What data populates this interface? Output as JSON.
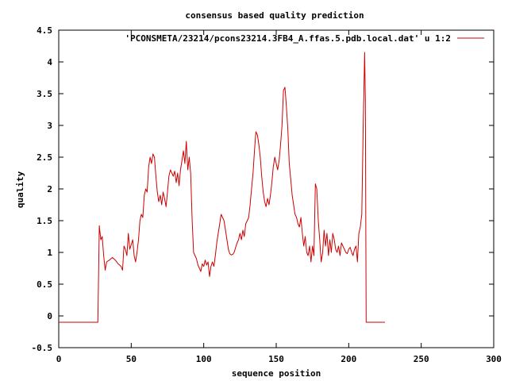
{
  "chart_data": {
    "type": "line",
    "title": "consensus based quality prediction",
    "xlabel": "sequence position",
    "ylabel": "quality",
    "xlim": [
      0,
      300
    ],
    "ylim": [
      -0.5,
      4.5
    ],
    "x_ticks": [
      "0",
      "50",
      "100",
      "150",
      "200",
      "250",
      "300"
    ],
    "y_ticks": [
      "-0.5",
      "0",
      "0.5",
      "1",
      "1.5",
      "2",
      "2.5",
      "3",
      "3.5",
      "4",
      "4.5"
    ],
    "grid": false,
    "legend_position": "top-right",
    "series": [
      {
        "name": "'PCONSMETA/23214/pcons23214.3FB4_A.ffas.5.pdb.local.dat' u 1:2",
        "color": "#cc0000",
        "points": [
          [
            0,
            -0.1
          ],
          [
            10,
            -0.1
          ],
          [
            20,
            -0.1
          ],
          [
            26,
            -0.1
          ],
          [
            27,
            -0.1
          ],
          [
            28,
            1.42
          ],
          [
            29,
            1.2
          ],
          [
            30,
            1.25
          ],
          [
            31,
            0.95
          ],
          [
            32,
            0.72
          ],
          [
            33,
            0.85
          ],
          [
            35,
            0.88
          ],
          [
            37,
            0.92
          ],
          [
            39,
            0.88
          ],
          [
            41,
            0.82
          ],
          [
            43,
            0.78
          ],
          [
            44,
            0.72
          ],
          [
            45,
            1.1
          ],
          [
            46,
            1.05
          ],
          [
            47,
            0.95
          ],
          [
            48,
            1.3
          ],
          [
            49,
            1.05
          ],
          [
            50,
            1.12
          ],
          [
            51,
            1.2
          ],
          [
            52,
            0.95
          ],
          [
            53,
            0.85
          ],
          [
            54,
            1.0
          ],
          [
            55,
            1.2
          ],
          [
            56,
            1.5
          ],
          [
            57,
            1.6
          ],
          [
            58,
            1.55
          ],
          [
            59,
            1.9
          ],
          [
            60,
            2.0
          ],
          [
            61,
            1.95
          ],
          [
            62,
            2.35
          ],
          [
            63,
            2.5
          ],
          [
            64,
            2.4
          ],
          [
            65,
            2.55
          ],
          [
            66,
            2.5
          ],
          [
            67,
            2.2
          ],
          [
            68,
            1.95
          ],
          [
            69,
            1.8
          ],
          [
            70,
            1.9
          ],
          [
            71,
            1.75
          ],
          [
            72,
            1.95
          ],
          [
            73,
            1.85
          ],
          [
            74,
            1.72
          ],
          [
            75,
            1.95
          ],
          [
            76,
            2.2
          ],
          [
            77,
            2.3
          ],
          [
            78,
            2.25
          ],
          [
            79,
            2.2
          ],
          [
            80,
            2.28
          ],
          [
            81,
            2.1
          ],
          [
            82,
            2.25
          ],
          [
            83,
            2.05
          ],
          [
            84,
            2.3
          ],
          [
            85,
            2.45
          ],
          [
            86,
            2.6
          ],
          [
            87,
            2.4
          ],
          [
            88,
            2.75
          ],
          [
            89,
            2.3
          ],
          [
            90,
            2.5
          ],
          [
            91,
            2.25
          ],
          [
            92,
            1.5
          ],
          [
            93,
            1.0
          ],
          [
            94,
            0.95
          ],
          [
            95,
            0.9
          ],
          [
            96,
            0.8
          ],
          [
            97,
            0.75
          ],
          [
            98,
            0.7
          ],
          [
            99,
            0.82
          ],
          [
            100,
            0.78
          ],
          [
            101,
            0.88
          ],
          [
            102,
            0.8
          ],
          [
            103,
            0.85
          ],
          [
            104,
            0.62
          ],
          [
            105,
            0.78
          ],
          [
            106,
            0.85
          ],
          [
            107,
            0.78
          ],
          [
            108,
            0.95
          ],
          [
            109,
            1.15
          ],
          [
            110,
            1.3
          ],
          [
            111,
            1.45
          ],
          [
            112,
            1.6
          ],
          [
            113,
            1.55
          ],
          [
            114,
            1.5
          ],
          [
            115,
            1.35
          ],
          [
            116,
            1.2
          ],
          [
            117,
            1.05
          ],
          [
            118,
            0.98
          ],
          [
            119,
            0.96
          ],
          [
            120,
            0.97
          ],
          [
            121,
            1.0
          ],
          [
            122,
            1.08
          ],
          [
            123,
            1.15
          ],
          [
            124,
            1.2
          ],
          [
            125,
            1.3
          ],
          [
            126,
            1.2
          ],
          [
            127,
            1.35
          ],
          [
            128,
            1.25
          ],
          [
            129,
            1.45
          ],
          [
            130,
            1.5
          ],
          [
            131,
            1.55
          ],
          [
            132,
            1.75
          ],
          [
            133,
            2.0
          ],
          [
            134,
            2.25
          ],
          [
            135,
            2.6
          ],
          [
            136,
            2.9
          ],
          [
            137,
            2.85
          ],
          [
            138,
            2.7
          ],
          [
            139,
            2.5
          ],
          [
            140,
            2.2
          ],
          [
            141,
            1.95
          ],
          [
            142,
            1.8
          ],
          [
            143,
            1.72
          ],
          [
            144,
            1.85
          ],
          [
            145,
            1.75
          ],
          [
            146,
            1.9
          ],
          [
            147,
            2.1
          ],
          [
            148,
            2.35
          ],
          [
            149,
            2.5
          ],
          [
            150,
            2.4
          ],
          [
            151,
            2.3
          ],
          [
            152,
            2.45
          ],
          [
            153,
            2.7
          ],
          [
            154,
            3.0
          ],
          [
            155,
            3.55
          ],
          [
            156,
            3.6
          ],
          [
            157,
            3.3
          ],
          [
            158,
            2.95
          ],
          [
            159,
            2.4
          ],
          [
            160,
            2.15
          ],
          [
            161,
            1.9
          ],
          [
            162,
            1.75
          ],
          [
            163,
            1.6
          ],
          [
            164,
            1.55
          ],
          [
            165,
            1.45
          ],
          [
            166,
            1.4
          ],
          [
            167,
            1.55
          ],
          [
            168,
            1.3
          ],
          [
            169,
            1.1
          ],
          [
            170,
            1.25
          ],
          [
            171,
            1.0
          ],
          [
            172,
            0.95
          ],
          [
            173,
            1.1
          ],
          [
            174,
            0.85
          ],
          [
            175,
            1.1
          ],
          [
            176,
            0.95
          ],
          [
            177,
            2.08
          ],
          [
            178,
            2.0
          ],
          [
            179,
            1.5
          ],
          [
            180,
            1.2
          ],
          [
            181,
            0.85
          ],
          [
            182,
            1.0
          ],
          [
            183,
            1.35
          ],
          [
            184,
            1.1
          ],
          [
            185,
            1.3
          ],
          [
            186,
            0.95
          ],
          [
            187,
            1.2
          ],
          [
            188,
            1.0
          ],
          [
            189,
            1.3
          ],
          [
            190,
            1.2
          ],
          [
            191,
            1.05
          ],
          [
            192,
            1.0
          ],
          [
            193,
            1.1
          ],
          [
            194,
            0.95
          ],
          [
            195,
            1.15
          ],
          [
            196,
            1.1
          ],
          [
            197,
            1.05
          ],
          [
            198,
            1.0
          ],
          [
            199,
            0.98
          ],
          [
            200,
            1.05
          ],
          [
            201,
            1.08
          ],
          [
            202,
            1.0
          ],
          [
            203,
            0.95
          ],
          [
            204,
            1.05
          ],
          [
            205,
            1.1
          ],
          [
            206,
            0.85
          ],
          [
            207,
            1.3
          ],
          [
            208,
            1.4
          ],
          [
            209,
            1.6
          ],
          [
            210,
            3.0
          ],
          [
            211,
            4.15
          ],
          [
            211.5,
            3.4
          ],
          [
            212,
            -0.1
          ],
          [
            215,
            -0.1
          ],
          [
            220,
            -0.1
          ],
          [
            225,
            -0.1
          ]
        ]
      }
    ]
  }
}
